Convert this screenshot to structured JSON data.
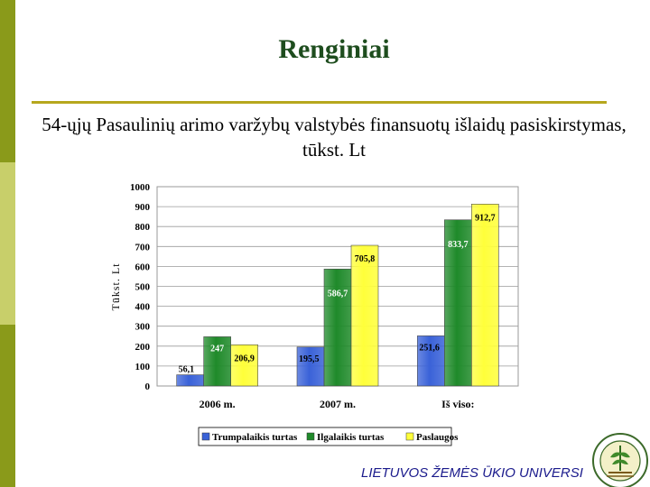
{
  "slide": {
    "title": "Renginiai",
    "footer": "LIETUVOS ŽEMĖS ŪKIO UNIVERSI"
  },
  "colors": {
    "accent_bar": "#8a9a1a",
    "accent_bar_light": "#c8cf6a",
    "title": "#1e4d1e",
    "rule": "#b6a71e",
    "footer": "#1a1a8c"
  },
  "chart_data": {
    "type": "bar",
    "title": "54-ųjų Pasaulinių arimo varžybų valstybės finansuotų išlaidų pasiskirstymas, tūkst. Lt",
    "ylabel": "Tūkst. Lt",
    "xlabel": "",
    "categories": [
      "2006 m.",
      "2007 m.",
      "Iš viso:"
    ],
    "ylim": [
      0,
      1000
    ],
    "yticks": [
      "0",
      "100",
      "200",
      "300",
      "400",
      "500",
      "600",
      "700",
      "800",
      "900",
      "1000"
    ],
    "grid": true,
    "legend_position": "bottom",
    "series": [
      {
        "name": "Trumpalaikis turtas",
        "color": "#3a62d8",
        "values": [
          56.1,
          195.5,
          251.6
        ],
        "labels": [
          "56,1",
          "195,5",
          "251,6"
        ]
      },
      {
        "name": "Ilgalaikis turtas",
        "color": "#1f8a2a",
        "values": [
          247,
          586.7,
          833.7
        ],
        "labels": [
          "247",
          "586,7",
          "833,7"
        ]
      },
      {
        "name": "Paslaugos",
        "color": "#ffff3a",
        "values": [
          206.9,
          705.8,
          912.7
        ],
        "labels": [
          "206,9",
          "705,8",
          "912,7"
        ]
      }
    ]
  }
}
